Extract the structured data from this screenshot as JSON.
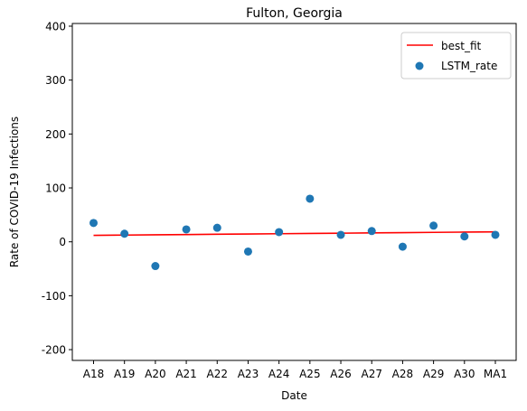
{
  "chart_data": {
    "type": "scatter",
    "title": "Fulton, Georgia",
    "xlabel": "Date",
    "ylabel": "Rate of COVID-19 Infections",
    "categories": [
      "A18",
      "A19",
      "A20",
      "A21",
      "A22",
      "A23",
      "A24",
      "A25",
      "A26",
      "A27",
      "A28",
      "A29",
      "A30",
      "MA1"
    ],
    "ylim": [
      -220,
      405
    ],
    "yticks": [
      -200,
      -100,
      0,
      100,
      200,
      300,
      400
    ],
    "grid": false,
    "legend_position": "upper right",
    "series": [
      {
        "name": "best_fit",
        "kind": "line",
        "color": "#ff0000",
        "values": [
          12.0,
          12.5,
          13.0,
          13.5,
          14.0,
          14.5,
          15.0,
          15.5,
          16.0,
          16.5,
          17.0,
          17.5,
          18.0,
          18.5
        ]
      },
      {
        "name": "LSTM_rate",
        "kind": "scatter",
        "color": "#1f77b4",
        "values": [
          35,
          15,
          -45,
          23,
          26,
          -18,
          18,
          80,
          13,
          20,
          -9,
          30,
          10,
          13
        ]
      }
    ]
  }
}
